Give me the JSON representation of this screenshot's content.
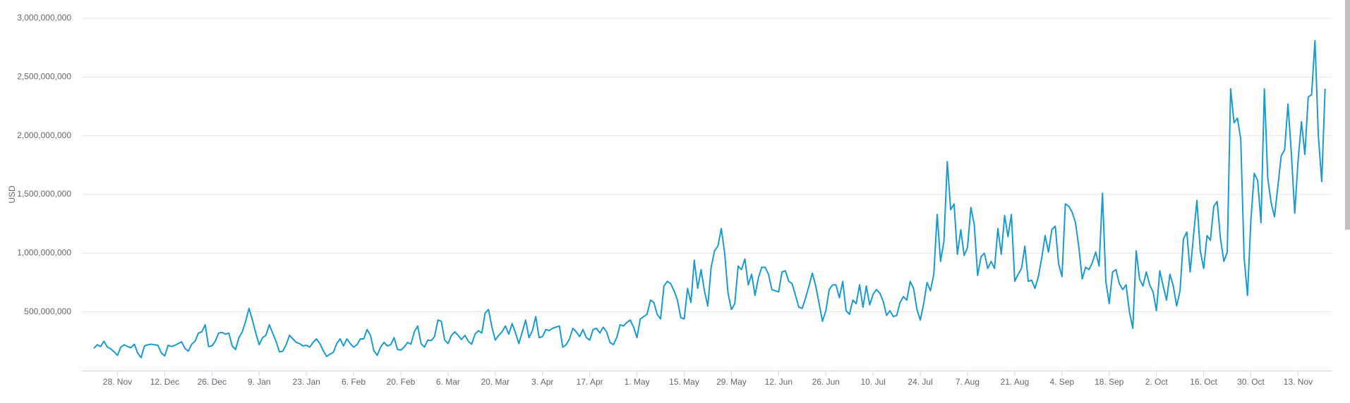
{
  "chart_data": {
    "type": "line",
    "ylabel": "USD",
    "color": "#1a9bd0",
    "grid": true,
    "ylim": [
      0,
      3000000000
    ],
    "yticks": [
      {
        "value": 500000000,
        "label": "500,000,000"
      },
      {
        "value": 1000000000,
        "label": "1,000,000,000"
      },
      {
        "value": 1500000000,
        "label": "1,500,000,000"
      },
      {
        "value": 2000000000,
        "label": "2,000,000,000"
      },
      {
        "value": 2500000000,
        "label": "2,500,000,000"
      },
      {
        "value": 3000000000,
        "label": "3,000,000,000"
      }
    ],
    "categories": [
      null,
      null,
      null,
      null,
      null,
      null,
      null,
      "28. Nov",
      null,
      null,
      null,
      null,
      null,
      null,
      null,
      null,
      null,
      null,
      null,
      null,
      null,
      "12. Dec",
      null,
      null,
      null,
      null,
      null,
      null,
      null,
      null,
      null,
      null,
      null,
      null,
      null,
      "26. Dec",
      null,
      null,
      null,
      null,
      null,
      null,
      null,
      null,
      null,
      null,
      null,
      null,
      null,
      "9. Jan",
      null,
      null,
      null,
      null,
      null,
      null,
      null,
      null,
      null,
      null,
      null,
      null,
      null,
      "23. Jan",
      null,
      null,
      null,
      null,
      null,
      null,
      null,
      null,
      null,
      null,
      null,
      null,
      null,
      "6. Feb",
      null,
      null,
      null,
      null,
      null,
      null,
      null,
      null,
      null,
      null,
      null,
      null,
      null,
      "20. Feb",
      null,
      null,
      null,
      null,
      null,
      null,
      null,
      null,
      null,
      null,
      null,
      null,
      null,
      "6. Mar",
      null,
      null,
      null,
      null,
      null,
      null,
      null,
      null,
      null,
      null,
      null,
      null,
      null,
      "20. Mar",
      null,
      null,
      null,
      null,
      null,
      null,
      null,
      null,
      null,
      null,
      null,
      null,
      null,
      "3. Apr",
      null,
      null,
      null,
      null,
      null,
      null,
      null,
      null,
      null,
      null,
      null,
      null,
      null,
      "17. Apr",
      null,
      null,
      null,
      null,
      null,
      null,
      null,
      null,
      null,
      null,
      null,
      null,
      null,
      "1. May",
      null,
      null,
      null,
      null,
      null,
      null,
      null,
      null,
      null,
      null,
      null,
      null,
      null,
      "15. May",
      null,
      null,
      null,
      null,
      null,
      null,
      null,
      null,
      null,
      null,
      null,
      null,
      null,
      "29. May",
      null,
      null,
      null,
      null,
      null,
      null,
      null,
      null,
      null,
      null,
      null,
      null,
      null,
      "12. Jun",
      null,
      null,
      null,
      null,
      null,
      null,
      null,
      null,
      null,
      null,
      null,
      null,
      null,
      "26. Jun",
      null,
      null,
      null,
      null,
      null,
      null,
      null,
      null,
      null,
      null,
      null,
      null,
      null,
      "10. Jul",
      null,
      null,
      null,
      null,
      null,
      null,
      null,
      null,
      null,
      null,
      null,
      null,
      null,
      "24. Jul",
      null,
      null,
      null,
      null,
      null,
      null,
      null,
      null,
      null,
      null,
      null,
      null,
      null,
      "7. Aug",
      null,
      null,
      null,
      null,
      null,
      null,
      null,
      null,
      null,
      null,
      null,
      null,
      null,
      "21. Aug",
      null,
      null,
      null,
      null,
      null,
      null,
      null,
      null,
      null,
      null,
      null,
      null,
      null,
      "4. Sep",
      null,
      null,
      null,
      null,
      null,
      null,
      null,
      null,
      null,
      null,
      null,
      null,
      null,
      "18. Sep",
      null,
      null,
      null,
      null,
      null,
      null,
      null,
      null,
      null,
      null,
      null,
      null,
      null,
      "2. Oct",
      null,
      null,
      null,
      null,
      null,
      null,
      null,
      null,
      null,
      null,
      null,
      null,
      null,
      "16. Oct",
      null,
      null,
      null,
      null,
      null,
      null,
      null,
      null,
      null,
      null,
      null,
      null,
      null,
      "30. Oct",
      null,
      null,
      null,
      null,
      null,
      null,
      null,
      null,
      null,
      null,
      null,
      null,
      null,
      "13. Nov",
      null,
      null,
      null,
      null,
      null,
      null,
      null,
      null
    ],
    "values": [
      190000000,
      220000000,
      205000000,
      250000000,
      200000000,
      185000000,
      160000000,
      130000000,
      200000000,
      220000000,
      205000000,
      195000000,
      225000000,
      150000000,
      110000000,
      210000000,
      220000000,
      225000000,
      220000000,
      215000000,
      150000000,
      125000000,
      215000000,
      205000000,
      215000000,
      230000000,
      245000000,
      190000000,
      165000000,
      225000000,
      250000000,
      320000000,
      330000000,
      390000000,
      205000000,
      210000000,
      250000000,
      320000000,
      325000000,
      310000000,
      320000000,
      210000000,
      180000000,
      280000000,
      330000000,
      420000000,
      530000000,
      430000000,
      320000000,
      220000000,
      280000000,
      300000000,
      390000000,
      320000000,
      250000000,
      160000000,
      165000000,
      220000000,
      300000000,
      270000000,
      240000000,
      230000000,
      210000000,
      215000000,
      200000000,
      240000000,
      270000000,
      230000000,
      170000000,
      120000000,
      140000000,
      155000000,
      230000000,
      270000000,
      210000000,
      270000000,
      230000000,
      200000000,
      220000000,
      270000000,
      270000000,
      350000000,
      300000000,
      170000000,
      130000000,
      200000000,
      240000000,
      210000000,
      220000000,
      280000000,
      180000000,
      175000000,
      200000000,
      240000000,
      225000000,
      330000000,
      380000000,
      230000000,
      200000000,
      260000000,
      255000000,
      290000000,
      430000000,
      420000000,
      260000000,
      230000000,
      300000000,
      330000000,
      300000000,
      265000000,
      300000000,
      250000000,
      225000000,
      310000000,
      340000000,
      320000000,
      490000000,
      520000000,
      370000000,
      260000000,
      300000000,
      330000000,
      380000000,
      310000000,
      400000000,
      320000000,
      230000000,
      330000000,
      430000000,
      280000000,
      340000000,
      460000000,
      280000000,
      290000000,
      350000000,
      340000000,
      360000000,
      370000000,
      380000000,
      200000000,
      220000000,
      270000000,
      360000000,
      330000000,
      290000000,
      350000000,
      280000000,
      260000000,
      350000000,
      360000000,
      320000000,
      370000000,
      330000000,
      240000000,
      220000000,
      280000000,
      390000000,
      380000000,
      410000000,
      430000000,
      370000000,
      280000000,
      440000000,
      460000000,
      480000000,
      600000000,
      580000000,
      480000000,
      440000000,
      720000000,
      760000000,
      740000000,
      680000000,
      600000000,
      450000000,
      440000000,
      700000000,
      580000000,
      940000000,
      700000000,
      860000000,
      680000000,
      550000000,
      880000000,
      1020000000,
      1060000000,
      1210000000,
      1000000000,
      660000000,
      520000000,
      570000000,
      890000000,
      860000000,
      950000000,
      730000000,
      820000000,
      640000000,
      790000000,
      880000000,
      880000000,
      820000000,
      690000000,
      680000000,
      670000000,
      840000000,
      850000000,
      760000000,
      740000000,
      640000000,
      540000000,
      530000000,
      620000000,
      720000000,
      830000000,
      720000000,
      570000000,
      420000000,
      510000000,
      690000000,
      730000000,
      730000000,
      620000000,
      760000000,
      510000000,
      480000000,
      600000000,
      570000000,
      730000000,
      540000000,
      720000000,
      560000000,
      650000000,
      690000000,
      660000000,
      590000000,
      470000000,
      510000000,
      460000000,
      470000000,
      580000000,
      630000000,
      600000000,
      760000000,
      700000000,
      520000000,
      430000000,
      570000000,
      750000000,
      680000000,
      820000000,
      1330000000,
      930000000,
      1100000000,
      1780000000,
      1370000000,
      1420000000,
      990000000,
      1200000000,
      980000000,
      1050000000,
      1390000000,
      1240000000,
      810000000,
      970000000,
      1000000000,
      870000000,
      930000000,
      870000000,
      1210000000,
      990000000,
      1320000000,
      1140000000,
      1330000000,
      760000000,
      820000000,
      870000000,
      1060000000,
      760000000,
      770000000,
      700000000,
      800000000,
      960000000,
      1150000000,
      1010000000,
      1200000000,
      1230000000,
      910000000,
      800000000,
      1420000000,
      1400000000,
      1350000000,
      1260000000,
      1050000000,
      780000000,
      880000000,
      860000000,
      920000000,
      1010000000,
      890000000,
      1510000000,
      760000000,
      570000000,
      840000000,
      860000000,
      740000000,
      690000000,
      730000000,
      500000000,
      360000000,
      1020000000,
      780000000,
      720000000,
      840000000,
      730000000,
      670000000,
      510000000,
      850000000,
      720000000,
      600000000,
      820000000,
      720000000,
      550000000,
      680000000,
      1120000000,
      1180000000,
      840000000,
      1150000000,
      1450000000,
      1020000000,
      870000000,
      1150000000,
      1110000000,
      1400000000,
      1440000000,
      1120000000,
      930000000,
      1010000000,
      2400000000,
      2110000000,
      2150000000,
      1970000000,
      960000000,
      640000000,
      1280000000,
      1680000000,
      1620000000,
      1260000000,
      2400000000,
      1640000000,
      1430000000,
      1310000000,
      1570000000,
      1830000000,
      1880000000,
      2270000000,
      1850000000,
      1340000000,
      1790000000,
      2120000000,
      1840000000,
      2330000000,
      2350000000,
      2810000000,
      2000000000,
      1610000000,
      2400000000
    ]
  }
}
